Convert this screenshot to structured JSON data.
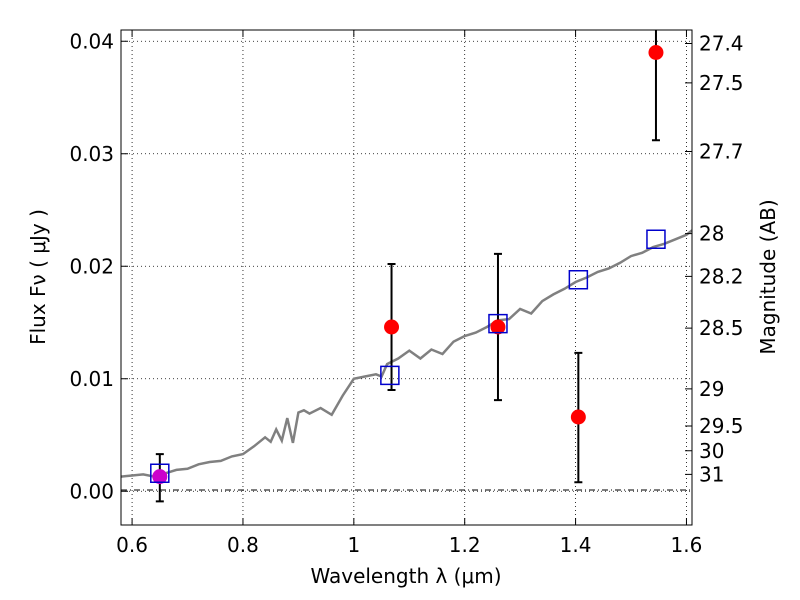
{
  "chart_data": {
    "type": "scatter",
    "title": "",
    "xlabel": "Wavelength  λ (μm)",
    "ylabel": "Flux  Fν  ( μJy )",
    "y2label": "Magnitude (AB)",
    "xlim": [
      0.58,
      1.61
    ],
    "ylim": [
      -0.003,
      0.041
    ],
    "grid": true,
    "x_ticks": [
      0.6,
      0.8,
      1.0,
      1.2,
      1.4,
      1.6
    ],
    "x_tick_labels": [
      "0.6",
      "0.8",
      "1",
      "1.2",
      "1.4",
      "1.6"
    ],
    "y_ticks": [
      0.0,
      0.01,
      0.02,
      0.03,
      0.04
    ],
    "y_tick_labels": [
      "0.00",
      "0.01",
      "0.02",
      "0.03",
      "0.04"
    ],
    "y2_ticks": [
      {
        "label": "27.4",
        "flux": 0.0398
      },
      {
        "label": "27.5",
        "flux": 0.0363
      },
      {
        "label": "27.7",
        "flux": 0.0302
      },
      {
        "label": "28",
        "flux": 0.0229
      },
      {
        "label": "28.2",
        "flux": 0.0191
      },
      {
        "label": "28.5",
        "flux": 0.0145
      },
      {
        "label": "29",
        "flux": 0.0091
      },
      {
        "label": "29.5",
        "flux": 0.0058
      },
      {
        "label": "30",
        "flux": 0.0036
      },
      {
        "label": "31",
        "flux": 0.0015
      }
    ],
    "series": [
      {
        "kind": "spectrum",
        "color": "#808080",
        "x": [
          0.58,
          0.6,
          0.62,
          0.64,
          0.66,
          0.68,
          0.7,
          0.72,
          0.74,
          0.76,
          0.78,
          0.8,
          0.82,
          0.84,
          0.85,
          0.86,
          0.87,
          0.88,
          0.89,
          0.9,
          0.91,
          0.92,
          0.94,
          0.96,
          0.98,
          1.0,
          1.02,
          1.04,
          1.05,
          1.06,
          1.08,
          1.1,
          1.12,
          1.14,
          1.16,
          1.18,
          1.2,
          1.22,
          1.24,
          1.26,
          1.28,
          1.3,
          1.32,
          1.34,
          1.36,
          1.38,
          1.4,
          1.42,
          1.44,
          1.46,
          1.48,
          1.5,
          1.52,
          1.54,
          1.56,
          1.58,
          1.6,
          1.61
        ],
        "y": [
          0.0013,
          0.0014,
          0.0015,
          0.0013,
          0.0016,
          0.0019,
          0.002,
          0.0024,
          0.0026,
          0.0027,
          0.0031,
          0.0033,
          0.004,
          0.0048,
          0.0044,
          0.0055,
          0.0045,
          0.0065,
          0.0043,
          0.007,
          0.0072,
          0.0069,
          0.0074,
          0.0068,
          0.0085,
          0.01,
          0.0102,
          0.0104,
          0.0102,
          0.0113,
          0.0118,
          0.0125,
          0.0118,
          0.0126,
          0.0122,
          0.0133,
          0.0138,
          0.0141,
          0.0146,
          0.0152,
          0.0153,
          0.0162,
          0.0158,
          0.0169,
          0.0175,
          0.018,
          0.0186,
          0.019,
          0.0195,
          0.0198,
          0.0203,
          0.0209,
          0.0212,
          0.0217,
          0.022,
          0.0224,
          0.0228,
          0.0232
        ]
      },
      {
        "kind": "model",
        "marker": "square",
        "color": "#0000cc",
        "x": [
          0.65,
          1.065,
          1.26,
          1.405,
          1.545
        ],
        "y": [
          0.0016,
          0.0103,
          0.0149,
          0.0188,
          0.0224
        ]
      },
      {
        "kind": "observed",
        "marker": "circle",
        "color": "#ff0000",
        "x": [
          0.65,
          1.068,
          1.26,
          1.405,
          1.545
        ],
        "y": [
          0.0013,
          0.0146,
          0.0146,
          0.0066,
          0.039
        ],
        "yerr_low": [
          -0.0009,
          0.009,
          0.0081,
          0.0008,
          0.0312
        ],
        "yerr_high": [
          0.0033,
          0.0202,
          0.0211,
          0.0123,
          0.042
        ]
      }
    ]
  }
}
